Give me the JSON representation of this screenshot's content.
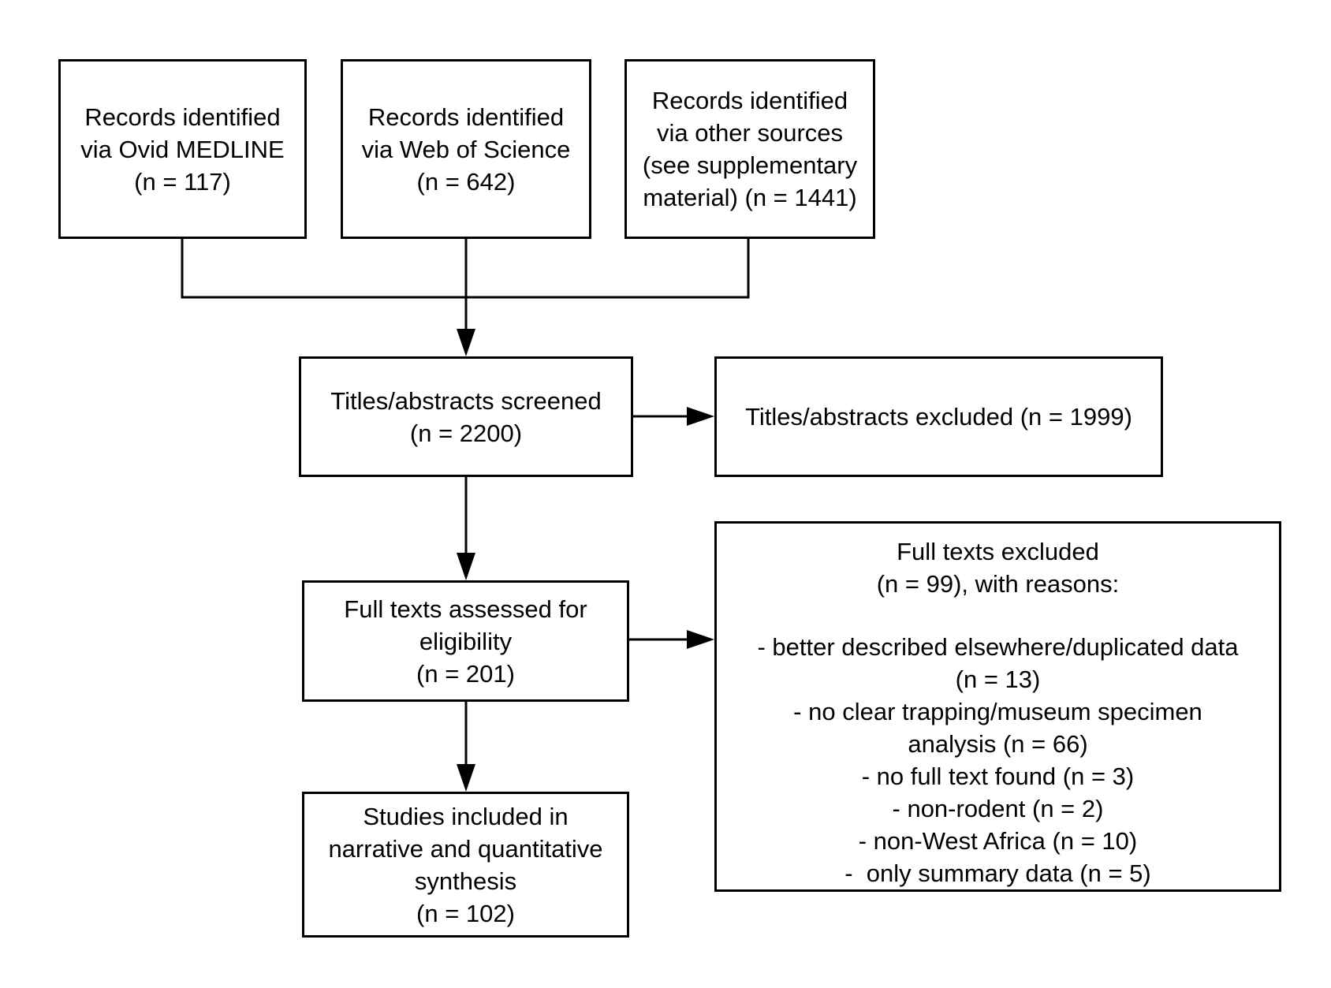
{
  "boxes": {
    "medline": [
      "Records identified",
      "via Ovid MEDLINE",
      "(n = 117)"
    ],
    "wos": [
      "Records identified",
      "via Web of Science",
      "(n = 642)"
    ],
    "other": [
      "Records identified",
      "via other sources",
      "(see supplementary",
      "material) (n = 1441)"
    ],
    "screened": [
      "Titles/abstracts screened",
      "(n = 2200)"
    ],
    "abstracts_excluded": [
      "Titles/abstracts excluded (n = 1999)"
    ],
    "fulltext_assessed": [
      "Full texts assessed for",
      "eligibility",
      "(n = 201)"
    ],
    "fulltext_excluded": {
      "heading": [
        "Full texts excluded",
        "(n = 99), with reasons:"
      ],
      "reasons": [
        "- better described elsewhere/duplicated data",
        "(n = 13)",
        "- no clear trapping/museum specimen",
        "analysis (n = 66)",
        "- no full text found (n = 3)",
        "- non-rodent (n = 2)",
        "- non-West Africa (n = 10)",
        "-  only summary data (n = 5)"
      ]
    },
    "included": [
      "Studies included in",
      "narrative and quantitative",
      "synthesis",
      "(n = 102)"
    ]
  }
}
